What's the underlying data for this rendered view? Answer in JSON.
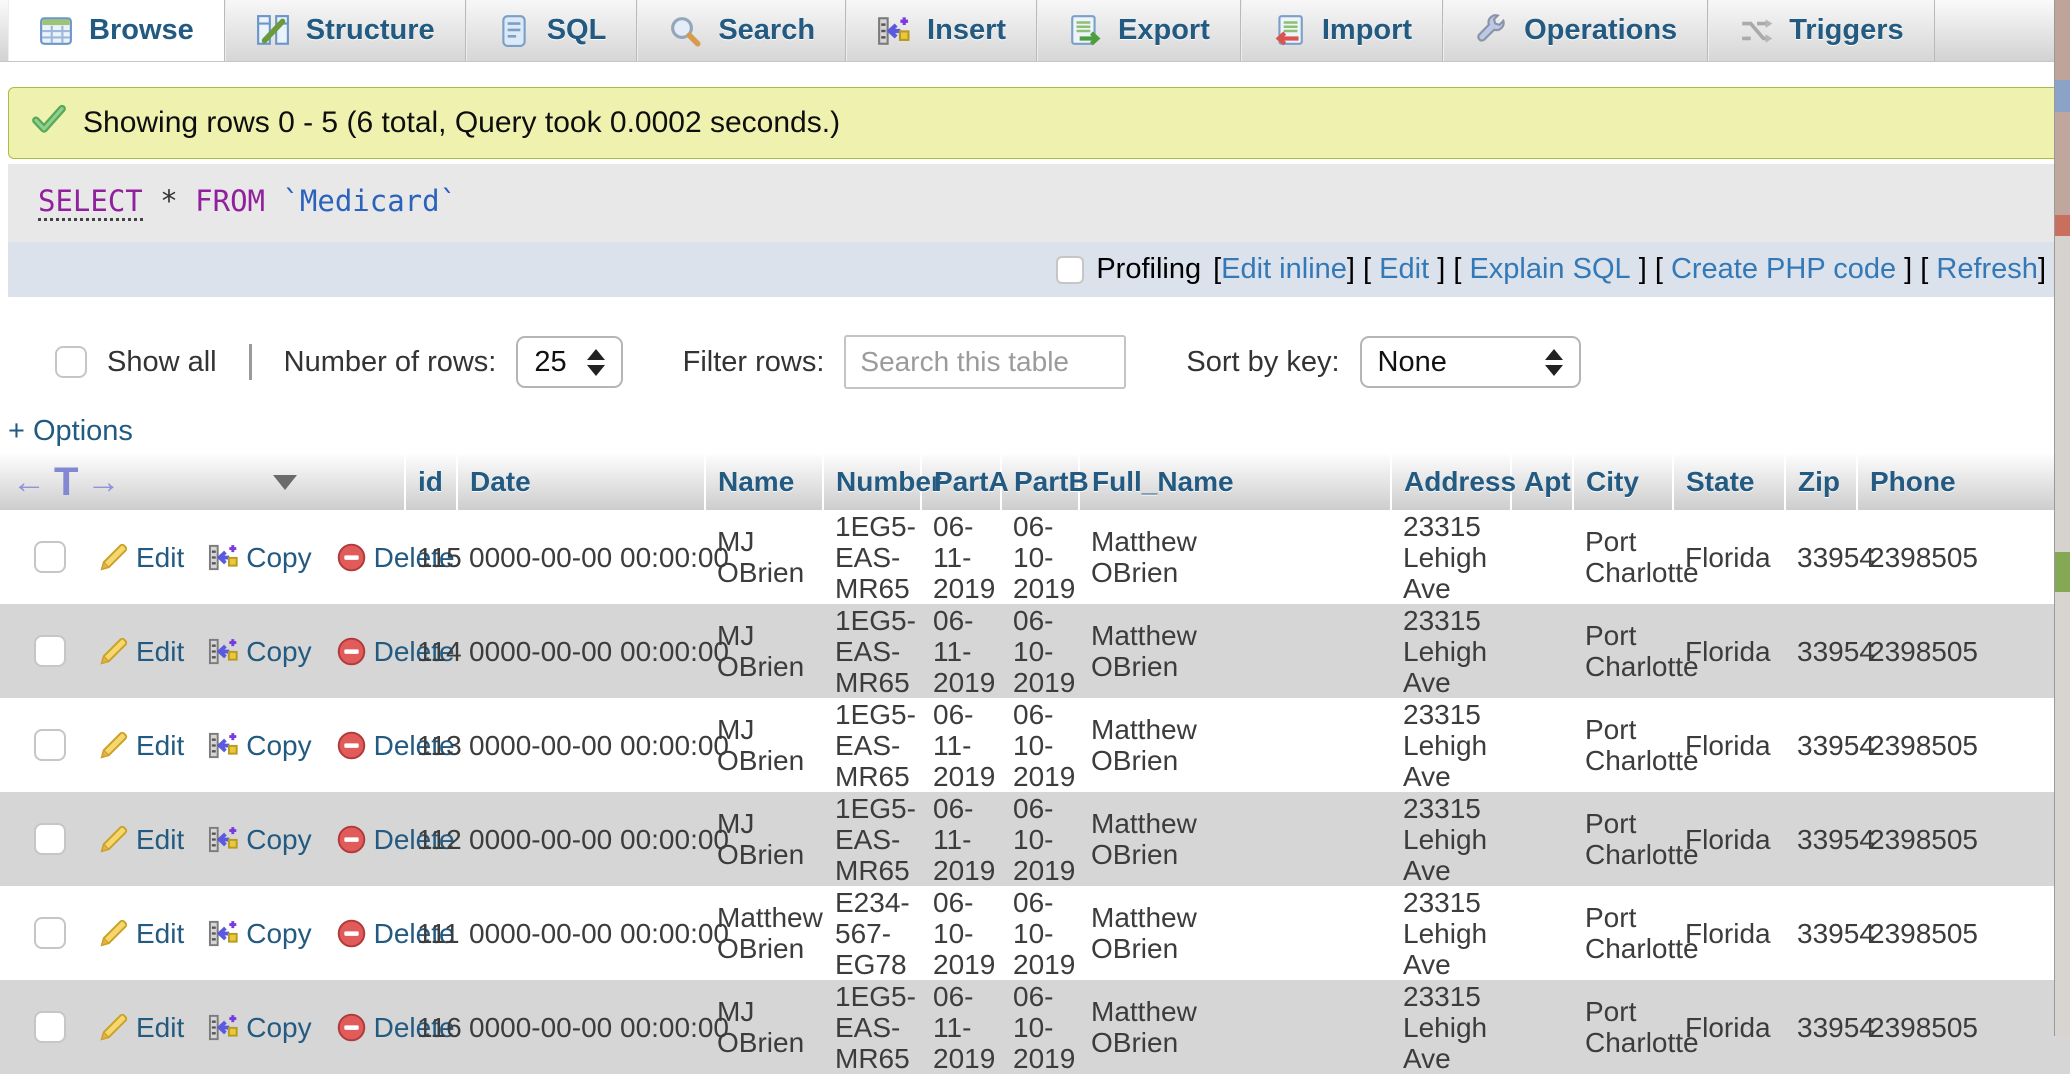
{
  "colors": {
    "tab_text": "#235a81",
    "header_text": "#235a81",
    "action_link": "#235a81",
    "bracket_link": "#3479b7",
    "success_bg": "#eef2ae",
    "sql_bg": "#e8e8e8",
    "profiling_bg": "#dbe2ec",
    "alt_row_bg": "#d6d6d6",
    "sql_keyword": "#90219c",
    "sql_identifier": "#2a62bc"
  },
  "tabs": [
    {
      "label": "Browse",
      "icon": "browse-icon",
      "active": true
    },
    {
      "label": "Structure",
      "icon": "structure-icon",
      "active": false
    },
    {
      "label": "SQL",
      "icon": "sql-icon",
      "active": false
    },
    {
      "label": "Search",
      "icon": "search-icon",
      "active": false
    },
    {
      "label": "Insert",
      "icon": "insert-icon",
      "active": false
    },
    {
      "label": "Export",
      "icon": "export-icon",
      "active": false
    },
    {
      "label": "Import",
      "icon": "import-icon",
      "active": false
    },
    {
      "label": "Operations",
      "icon": "operations-icon",
      "active": false
    },
    {
      "label": "Triggers",
      "icon": "triggers-icon",
      "active": false
    }
  ],
  "message": {
    "icon": "success-check-icon",
    "text": "Showing rows 0 - 5 (6 total, Query took 0.0002 seconds.)"
  },
  "sql": {
    "select": "SELECT",
    "star": " * ",
    "from": "FROM",
    "table": " `Medicard`"
  },
  "profiling": {
    "label": "Profiling",
    "links": [
      {
        "pre": "[",
        "label": "Edit inline",
        "post": "] "
      },
      {
        "pre": "[ ",
        "label": "Edit",
        "post": " ] "
      },
      {
        "pre": "[ ",
        "label": "Explain SQL",
        "post": " ] "
      },
      {
        "pre": "[ ",
        "label": "Create PHP code",
        "post": " ] "
      },
      {
        "pre": "[ ",
        "label": "Refresh",
        "post": "]"
      }
    ]
  },
  "controls": {
    "show_all_label": "Show all",
    "rows_label": "Number of rows:",
    "rows_value": "25",
    "filter_label": "Filter rows:",
    "filter_placeholder": "Search this table",
    "sort_label": "Sort by key:",
    "sort_value": "None"
  },
  "options_label": "+ Options",
  "col_nav": {
    "left": "←",
    "mid": "T",
    "right": "→"
  },
  "table": {
    "actions": {
      "edit": "Edit",
      "copy": "Copy",
      "delete": "Delete"
    },
    "columns": [
      {
        "key": "id",
        "label": "id"
      },
      {
        "key": "date",
        "label": "Date"
      },
      {
        "key": "name",
        "label": "Name"
      },
      {
        "key": "number",
        "label": "Number"
      },
      {
        "key": "parta",
        "label": "PartA"
      },
      {
        "key": "partb",
        "label": "PartB"
      },
      {
        "key": "full_name",
        "label": "Full_Name"
      },
      {
        "key": "address",
        "label": "Address"
      },
      {
        "key": "apt",
        "label": "Apt"
      },
      {
        "key": "city",
        "label": "City"
      },
      {
        "key": "state",
        "label": "State"
      },
      {
        "key": "zip",
        "label": "Zip"
      },
      {
        "key": "phone",
        "label": "Phone"
      }
    ],
    "rows": [
      {
        "id": "115",
        "date": "0000-00-00 00:00:00",
        "name": "MJ OBrien",
        "number": "1EG5-EAS-MR65",
        "parta": "06-11-2019",
        "partb": "06-10-2019",
        "full_name": "Matthew OBrien",
        "address": "23315 Lehigh Ave",
        "apt": "",
        "city": "Port Charlotte",
        "state": "Florida",
        "zip": "33954",
        "phone": "2398505"
      },
      {
        "id": "114",
        "date": "0000-00-00 00:00:00",
        "name": "MJ OBrien",
        "number": "1EG5-EAS-MR65",
        "parta": "06-11-2019",
        "partb": "06-10-2019",
        "full_name": "Matthew OBrien",
        "address": "23315 Lehigh Ave",
        "apt": "",
        "city": "Port Charlotte",
        "state": "Florida",
        "zip": "33954",
        "phone": "2398505"
      },
      {
        "id": "113",
        "date": "0000-00-00 00:00:00",
        "name": "MJ OBrien",
        "number": "1EG5-EAS-MR65",
        "parta": "06-11-2019",
        "partb": "06-10-2019",
        "full_name": "Matthew OBrien",
        "address": "23315 Lehigh Ave",
        "apt": "",
        "city": "Port Charlotte",
        "state": "Florida",
        "zip": "33954",
        "phone": "2398505"
      },
      {
        "id": "112",
        "date": "0000-00-00 00:00:00",
        "name": "MJ OBrien",
        "number": "1EG5-EAS-MR65",
        "parta": "06-11-2019",
        "partb": "06-10-2019",
        "full_name": "Matthew OBrien",
        "address": "23315 Lehigh Ave",
        "apt": "",
        "city": "Port Charlotte",
        "state": "Florida",
        "zip": "33954",
        "phone": "2398505"
      },
      {
        "id": "111",
        "date": "0000-00-00 00:00:00",
        "name": "Matthew OBrien",
        "number": "E234-567-EG78",
        "parta": "06-10-2019",
        "partb": "06-10-2019",
        "full_name": "Matthew OBrien",
        "address": "23315 Lehigh Ave",
        "apt": "",
        "city": "Port Charlotte",
        "state": "Florida",
        "zip": "33954",
        "phone": "2398505"
      },
      {
        "id": "116",
        "date": "0000-00-00 00:00:00",
        "name": "MJ OBrien",
        "number": "1EG5-EAS-MR65",
        "parta": "06-11-2019",
        "partb": "06-10-2019",
        "full_name": "Matthew OBrien",
        "address": "23315 Lehigh Ave",
        "apt": "",
        "city": "Port Charlotte",
        "state": "Florida",
        "zip": "33954",
        "phone": "2398505"
      }
    ]
  }
}
